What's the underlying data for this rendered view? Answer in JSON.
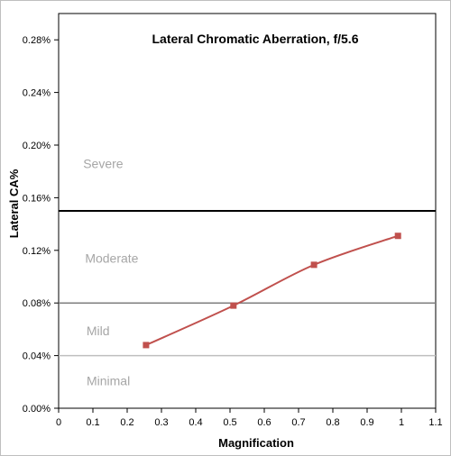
{
  "chart_data": {
    "type": "line",
    "title": "Lateral Chromatic Aberration, f/5.6",
    "xlabel": "Magnification",
    "ylabel": "Lateral CA%",
    "xlim": [
      0,
      1.1
    ],
    "ylim": [
      0,
      0.3
    ],
    "xticks": [
      0,
      0.1,
      0.2,
      0.3,
      0.4,
      0.5,
      0.6,
      0.7,
      0.8,
      0.9,
      1,
      1.1
    ],
    "xtick_labels": [
      "0",
      "0.1",
      "0.2",
      "0.3",
      "0.4",
      "0.5",
      "0.6",
      "0.7",
      "0.8",
      "0.9",
      "1",
      "1.1"
    ],
    "yticks": [
      0,
      0.04,
      0.08,
      0.12,
      0.16,
      0.2,
      0.24,
      0.28
    ],
    "ytick_labels": [
      "0.00%",
      "0.04%",
      "0.08%",
      "0.12%",
      "0.16%",
      "0.20%",
      "0.24%",
      "0.28%"
    ],
    "grid": false,
    "series": [
      {
        "color": "#c0504d",
        "x": [
          0.255,
          0.51,
          0.745,
          0.99
        ],
        "y": [
          0.048,
          0.078,
          0.109,
          0.131
        ]
      }
    ],
    "thresholds": [
      {
        "y": 0.04,
        "color": "#bfbfbf"
      },
      {
        "y": 0.08,
        "color": "#7f7f7f"
      },
      {
        "y": 0.15,
        "color": "#000000"
      }
    ],
    "zone_labels": [
      {
        "text": "Severe",
        "x": 0.13,
        "y": 0.186
      },
      {
        "text": "Moderate",
        "x": 0.155,
        "y": 0.114
      },
      {
        "text": "Mild",
        "x": 0.115,
        "y": 0.059
      },
      {
        "text": "Minimal",
        "x": 0.145,
        "y": 0.021
      }
    ],
    "zone_label_color": "#a6a6a6"
  }
}
